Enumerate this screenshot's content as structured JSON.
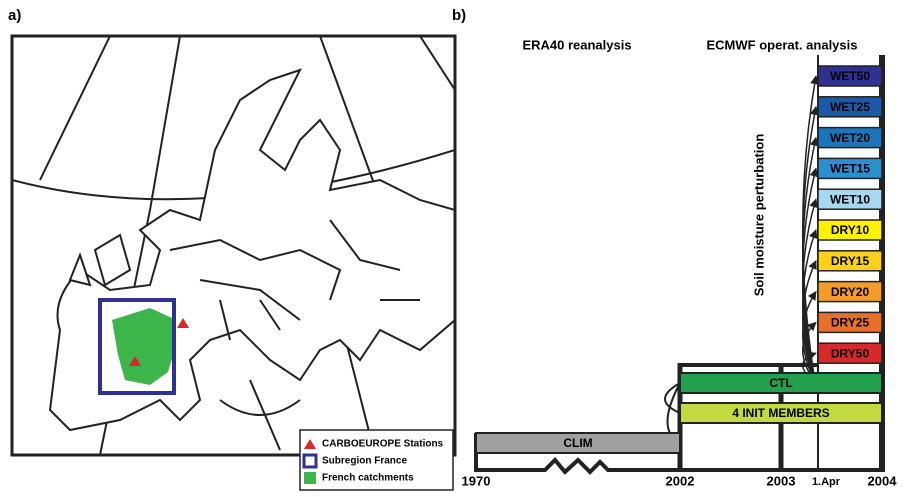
{
  "panel_a": {
    "label": "a)",
    "legend": [
      {
        "label": "CARBOEUROPE Stations",
        "color": "#d7282a"
      },
      {
        "label": "Subregion France",
        "color": "#2e3192"
      },
      {
        "label": "French catchments",
        "color": "#3cb54a"
      }
    ]
  },
  "panel_b": {
    "label": "b)",
    "headers": [
      "ERA40 reanalysis",
      "ECMWF operat. analysis"
    ],
    "axis_label": "Soil moisture perturbation",
    "boxes": [
      {
        "label": "WET50",
        "color": "#2e3192"
      },
      {
        "label": "WET25",
        "color": "#1c5aa8"
      },
      {
        "label": "WET20",
        "color": "#1b75bc"
      },
      {
        "label": "WET15",
        "color": "#2b8fd0"
      },
      {
        "label": "WET10",
        "color": "#a6d8f2"
      },
      {
        "label": "DRY10",
        "color": "#fff200"
      },
      {
        "label": "DRY15",
        "color": "#fcd116"
      },
      {
        "label": "DRY20",
        "color": "#f39c2b"
      },
      {
        "label": "DRY25",
        "color": "#e8702a"
      },
      {
        "label": "DRY50",
        "color": "#d7282a"
      }
    ],
    "ctl": {
      "label": "CTL",
      "color": "#22a04b"
    },
    "init": {
      "label": "4 INIT MEMBERS",
      "color": "#c3d940"
    },
    "clim": {
      "label": "CLIM",
      "color": "#a0a0a0"
    },
    "years": [
      "1970",
      "2002",
      "2003",
      "1.Apr",
      "2004"
    ]
  }
}
